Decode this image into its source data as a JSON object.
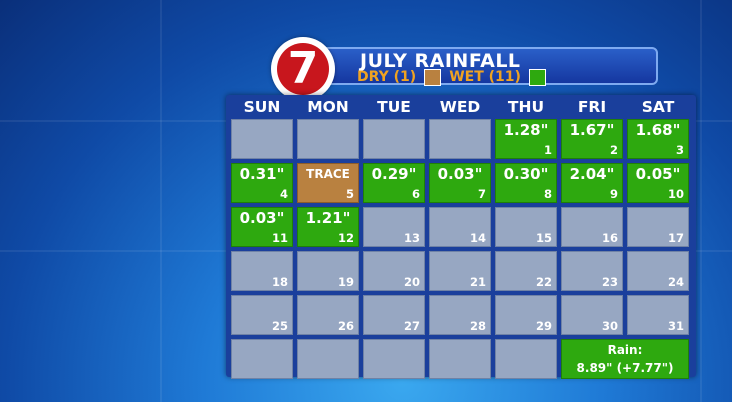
{
  "title": "JULY RAINFALL",
  "legend": {
    "dry_label": "DRY (1)",
    "wet_label": "WET (11)",
    "dry_color": "#b98140",
    "wet_color": "#2ea90f"
  },
  "logo": {
    "text": "7"
  },
  "weekdays": [
    "SUN",
    "MON",
    "TUE",
    "WED",
    "THU",
    "FRI",
    "SAT"
  ],
  "weeks": [
    [
      {
        "day": "",
        "amount": "",
        "type": "empty"
      },
      {
        "day": "",
        "amount": "",
        "type": "empty"
      },
      {
        "day": "",
        "amount": "",
        "type": "empty"
      },
      {
        "day": "",
        "amount": "",
        "type": "empty"
      },
      {
        "day": "1",
        "amount": "1.28\"",
        "type": "wet"
      },
      {
        "day": "2",
        "amount": "1.67\"",
        "type": "wet"
      },
      {
        "day": "3",
        "amount": "1.68\"",
        "type": "wet"
      }
    ],
    [
      {
        "day": "4",
        "amount": "0.31\"",
        "type": "wet"
      },
      {
        "day": "5",
        "amount": "TRACE",
        "type": "dry"
      },
      {
        "day": "6",
        "amount": "0.29\"",
        "type": "wet"
      },
      {
        "day": "7",
        "amount": "0.03\"",
        "type": "wet"
      },
      {
        "day": "8",
        "amount": "0.30\"",
        "type": "wet"
      },
      {
        "day": "9",
        "amount": "2.04\"",
        "type": "wet"
      },
      {
        "day": "10",
        "amount": "0.05\"",
        "type": "wet"
      }
    ],
    [
      {
        "day": "11",
        "amount": "0.03\"",
        "type": "wet"
      },
      {
        "day": "12",
        "amount": "1.21\"",
        "type": "wet"
      },
      {
        "day": "13",
        "amount": "",
        "type": "empty"
      },
      {
        "day": "14",
        "amount": "",
        "type": "empty"
      },
      {
        "day": "15",
        "amount": "",
        "type": "empty"
      },
      {
        "day": "16",
        "amount": "",
        "type": "empty"
      },
      {
        "day": "17",
        "amount": "",
        "type": "empty"
      }
    ],
    [
      {
        "day": "18",
        "amount": "",
        "type": "empty"
      },
      {
        "day": "19",
        "amount": "",
        "type": "empty"
      },
      {
        "day": "20",
        "amount": "",
        "type": "empty"
      },
      {
        "day": "21",
        "amount": "",
        "type": "empty"
      },
      {
        "day": "22",
        "amount": "",
        "type": "empty"
      },
      {
        "day": "23",
        "amount": "",
        "type": "empty"
      },
      {
        "day": "24",
        "amount": "",
        "type": "empty"
      }
    ],
    [
      {
        "day": "25",
        "amount": "",
        "type": "empty"
      },
      {
        "day": "26",
        "amount": "",
        "type": "empty"
      },
      {
        "day": "27",
        "amount": "",
        "type": "empty"
      },
      {
        "day": "28",
        "amount": "",
        "type": "empty"
      },
      {
        "day": "29",
        "amount": "",
        "type": "empty"
      },
      {
        "day": "30",
        "amount": "",
        "type": "empty"
      },
      {
        "day": "31",
        "amount": "",
        "type": "empty"
      }
    ],
    [
      {
        "day": "",
        "amount": "",
        "type": "empty"
      },
      {
        "day": "",
        "amount": "",
        "type": "empty"
      },
      {
        "day": "",
        "amount": "",
        "type": "empty"
      },
      {
        "day": "",
        "amount": "",
        "type": "empty"
      },
      {
        "day": "",
        "amount": "",
        "type": "empty"
      },
      {
        "day": "",
        "amount": "",
        "type": "total"
      },
      {
        "day": "",
        "amount": "",
        "type": "total-cont"
      }
    ]
  ],
  "total": {
    "label": "Rain:",
    "value": "8.89\" (+7.77\")"
  }
}
